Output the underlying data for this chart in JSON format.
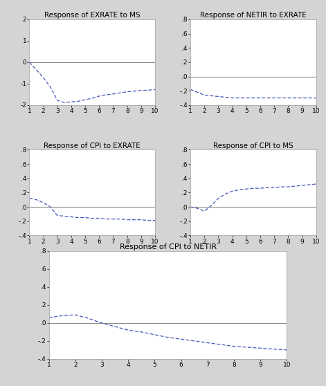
{
  "background_color": "#d4d4d4",
  "plot_bg_color": "#ffffff",
  "line_color": "#4455bb",
  "zero_line_color": "#888888",
  "plots": [
    {
      "title": "Response of EXRATE to MS",
      "xlim": [
        1,
        10
      ],
      "ylim": [
        -2.0,
        2.0
      ],
      "yticks": [
        -2,
        -1,
        0,
        1,
        2
      ],
      "ytick_labels": [
        "-2",
        "-1",
        "0",
        "1",
        "2"
      ],
      "x": [
        1,
        1.5,
        2,
        2.5,
        3,
        3.5,
        4,
        4.5,
        5,
        5.5,
        6,
        6.5,
        7,
        7.5,
        8,
        8.5,
        9,
        9.5,
        10
      ],
      "y": [
        0.0,
        -0.35,
        -0.72,
        -1.15,
        -1.78,
        -1.88,
        -1.85,
        -1.82,
        -1.75,
        -1.68,
        -1.58,
        -1.52,
        -1.48,
        -1.43,
        -1.38,
        -1.35,
        -1.32,
        -1.3,
        -1.28
      ]
    },
    {
      "title": "Response of NETIR to EXRATE",
      "xlim": [
        1,
        10
      ],
      "ylim": [
        -0.4,
        0.8
      ],
      "yticks": [
        -0.4,
        -0.2,
        0.0,
        0.2,
        0.4,
        0.6,
        0.8
      ],
      "ytick_labels": [
        "-.4",
        "-.2",
        ".0",
        ".2",
        ".4",
        ".6",
        ".8"
      ],
      "x": [
        1,
        1.5,
        2,
        2.5,
        3,
        3.5,
        4,
        5.5,
        6,
        6.5,
        7,
        7.5,
        8,
        8.5,
        9,
        9.5,
        10
      ],
      "y": [
        -0.18,
        -0.22,
        -0.26,
        -0.27,
        -0.28,
        -0.29,
        -0.3,
        -0.3,
        -0.3,
        -0.3,
        -0.3,
        -0.3,
        -0.3,
        -0.3,
        -0.3,
        -0.3,
        -0.3
      ]
    },
    {
      "title": "Response of CPI to EXRATE",
      "xlim": [
        1,
        10
      ],
      "ylim": [
        -0.4,
        0.8
      ],
      "yticks": [
        -0.4,
        -0.2,
        0.0,
        0.2,
        0.4,
        0.6,
        0.8
      ],
      "ytick_labels": [
        "-.4",
        "-.2",
        ".0",
        ".2",
        ".4",
        ".6",
        ".8"
      ],
      "x": [
        1,
        1.5,
        2,
        2.5,
        3,
        3.5,
        4,
        4.5,
        5,
        5.5,
        6,
        6.5,
        7,
        7.5,
        8,
        8.5,
        9,
        9.5,
        10
      ],
      "y": [
        0.12,
        0.1,
        0.06,
        0.0,
        -0.12,
        -0.13,
        -0.14,
        -0.15,
        -0.15,
        -0.16,
        -0.16,
        -0.17,
        -0.17,
        -0.17,
        -0.18,
        -0.18,
        -0.18,
        -0.19,
        -0.19
      ]
    },
    {
      "title": "Response of CPI to MS",
      "xlim": [
        1,
        10
      ],
      "ylim": [
        -0.4,
        0.8
      ],
      "yticks": [
        -0.4,
        -0.2,
        0.0,
        0.2,
        0.4,
        0.6,
        0.8
      ],
      "ytick_labels": [
        "-.4",
        "-.2",
        ".0",
        ".2",
        ".4",
        ".6",
        ".8"
      ],
      "x": [
        1,
        1.5,
        2,
        2.5,
        3,
        3.5,
        4,
        4.5,
        5,
        5.5,
        6,
        6.5,
        7,
        7.5,
        8,
        8.5,
        9,
        9.5,
        10
      ],
      "y": [
        0.0,
        -0.02,
        -0.06,
        0.02,
        0.12,
        0.18,
        0.22,
        0.24,
        0.25,
        0.26,
        0.26,
        0.27,
        0.27,
        0.28,
        0.28,
        0.29,
        0.3,
        0.31,
        0.32
      ]
    },
    {
      "title": "Response of CPI to NETIR",
      "xlim": [
        1,
        10
      ],
      "ylim": [
        -0.4,
        0.8
      ],
      "yticks": [
        -0.4,
        -0.2,
        0.0,
        0.2,
        0.4,
        0.6,
        0.8
      ],
      "ytick_labels": [
        "-.4",
        "-.2",
        ".0",
        ".2",
        ".4",
        ".6",
        ".8"
      ],
      "x": [
        1,
        1.5,
        2,
        2.5,
        3,
        3.5,
        4,
        4.5,
        5,
        5.5,
        6,
        6.5,
        7,
        7.5,
        8,
        8.5,
        9,
        9.5,
        10
      ],
      "y": [
        0.06,
        0.08,
        0.09,
        0.05,
        0.0,
        -0.04,
        -0.08,
        -0.1,
        -0.13,
        -0.16,
        -0.18,
        -0.2,
        -0.22,
        -0.24,
        -0.26,
        -0.27,
        -0.28,
        -0.29,
        -0.3
      ]
    }
  ]
}
